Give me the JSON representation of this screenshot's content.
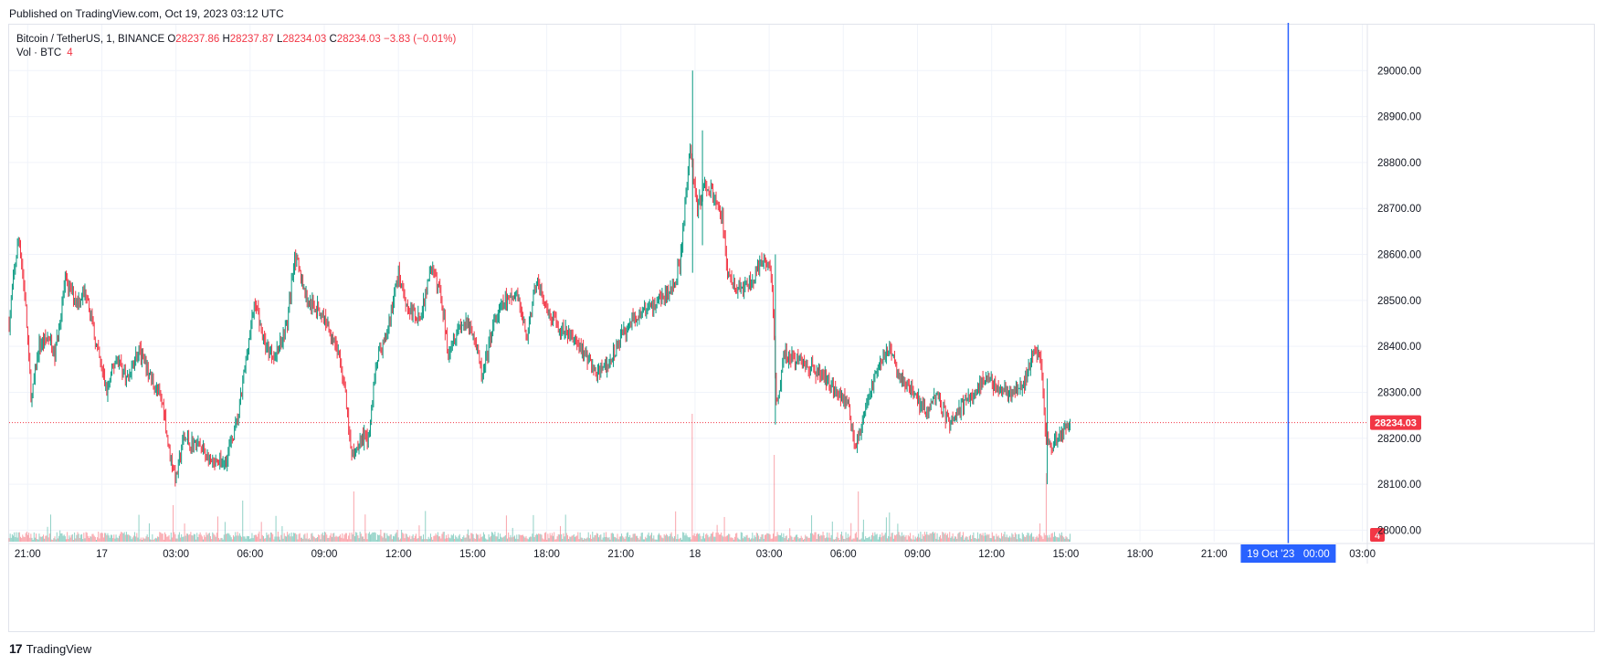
{
  "published_text": "Published on TradingView.com, Oct 19, 2023 03:12 UTC",
  "legend": {
    "symbol": "Bitcoin / TetherUS, 1, BINANCE",
    "o_label": "O",
    "o_value": "28237.86",
    "h_label": "H",
    "h_value": "28237.87",
    "l_label": "L",
    "l_value": "28234.03",
    "c_label": "C",
    "c_value": "28234.03",
    "change": "−3.83 (−0.01%)"
  },
  "volume_legend": {
    "label": "Vol · BTC",
    "value": "4"
  },
  "footer": {
    "logo": "17",
    "brand": "TradingView"
  },
  "colors": {
    "up": "#089981",
    "down": "#f23645",
    "crosshair": "#2962ff",
    "grid": "#f0f3fa"
  },
  "chart_data": {
    "type": "candlestick",
    "title": "Bitcoin / TetherUS, 1, BINANCE",
    "interval": "1 minute",
    "ylim": [
      27975,
      29100
    ],
    "y_ticks": [
      28000,
      28100,
      28200,
      28300,
      28400,
      28500,
      28600,
      28700,
      28800,
      28900,
      29000
    ],
    "y_tick_labels": [
      "28000.00",
      "28100.00",
      "28200.00",
      "28300.00",
      "28400.00",
      "28500.00",
      "28600.00",
      "28700.00",
      "28800.00",
      "28900.00",
      "29000.00"
    ],
    "x_range_hours": [
      -0.3,
      33.3
    ],
    "x_ticks": [
      {
        "t": 0,
        "label": "21:00"
      },
      {
        "t": 3,
        "label": "17"
      },
      {
        "t": 6,
        "label": "03:00"
      },
      {
        "t": 9,
        "label": "06:00"
      },
      {
        "t": 12,
        "label": "09:00"
      },
      {
        "t": 15,
        "label": "12:00"
      },
      {
        "t": 18,
        "label": "15:00"
      },
      {
        "t": 21,
        "label": "18:00"
      },
      {
        "t": 24,
        "label": "21:00"
      },
      {
        "t": 27,
        "label": "18"
      },
      {
        "t": 30,
        "label": "03:00"
      },
      {
        "t": 33,
        "label": "06:00"
      },
      {
        "t": 36,
        "label": "09:00"
      },
      {
        "t": 39,
        "label": "12:00"
      },
      {
        "t": 42,
        "label": "15:00"
      },
      {
        "t": 45,
        "label": "18:00"
      },
      {
        "t": 48,
        "label": "21:00"
      },
      {
        "t": 54,
        "label": "03:00"
      }
    ],
    "x_range_hours_full": [
      -0.75,
      54.2
    ],
    "crosshair": {
      "t": 51,
      "label": "19 Oct '23   00:00"
    },
    "last_price": 28234.03,
    "last_price_label": "28234.03",
    "volume_label_value": "4",
    "price_path": [
      {
        "t": -0.75,
        "p": 28450
      },
      {
        "t": -0.55,
        "p": 28560
      },
      {
        "t": -0.35,
        "p": 28640
      },
      {
        "t": -0.1,
        "p": 28500
      },
      {
        "t": 0.15,
        "p": 28280
      },
      {
        "t": 0.45,
        "p": 28400
      },
      {
        "t": 0.8,
        "p": 28420
      },
      {
        "t": 1.1,
        "p": 28380
      },
      {
        "t": 1.5,
        "p": 28540
      },
      {
        "t": 2.0,
        "p": 28500
      },
      {
        "t": 2.4,
        "p": 28520
      },
      {
        "t": 2.7,
        "p": 28420
      },
      {
        "t": 3.2,
        "p": 28300
      },
      {
        "t": 3.6,
        "p": 28380
      },
      {
        "t": 4.0,
        "p": 28330
      },
      {
        "t": 4.5,
        "p": 28390
      },
      {
        "t": 5.0,
        "p": 28330
      },
      {
        "t": 5.5,
        "p": 28270
      },
      {
        "t": 5.7,
        "p": 28180
      },
      {
        "t": 6.0,
        "p": 28110
      },
      {
        "t": 6.3,
        "p": 28200
      },
      {
        "t": 7.0,
        "p": 28180
      },
      {
        "t": 7.5,
        "p": 28140
      },
      {
        "t": 8.0,
        "p": 28150
      },
      {
        "t": 8.5,
        "p": 28240
      },
      {
        "t": 8.9,
        "p": 28400
      },
      {
        "t": 9.2,
        "p": 28500
      },
      {
        "t": 9.6,
        "p": 28400
      },
      {
        "t": 10.0,
        "p": 28380
      },
      {
        "t": 10.5,
        "p": 28450
      },
      {
        "t": 10.8,
        "p": 28600
      },
      {
        "t": 11.3,
        "p": 28500
      },
      {
        "t": 11.8,
        "p": 28480
      },
      {
        "t": 12.2,
        "p": 28440
      },
      {
        "t": 12.5,
        "p": 28400
      },
      {
        "t": 12.8,
        "p": 28320
      },
      {
        "t": 13.1,
        "p": 28160
      },
      {
        "t": 13.5,
        "p": 28200
      },
      {
        "t": 13.8,
        "p": 28200
      },
      {
        "t": 14.1,
        "p": 28370
      },
      {
        "t": 14.5,
        "p": 28420
      },
      {
        "t": 15.0,
        "p": 28560
      },
      {
        "t": 15.4,
        "p": 28480
      },
      {
        "t": 15.9,
        "p": 28460
      },
      {
        "t": 16.3,
        "p": 28570
      },
      {
        "t": 16.7,
        "p": 28520
      },
      {
        "t": 17.0,
        "p": 28390
      },
      {
        "t": 17.5,
        "p": 28450
      },
      {
        "t": 18.0,
        "p": 28440
      },
      {
        "t": 18.4,
        "p": 28330
      },
      {
        "t": 18.8,
        "p": 28440
      },
      {
        "t": 19.3,
        "p": 28500
      },
      {
        "t": 19.8,
        "p": 28510
      },
      {
        "t": 20.2,
        "p": 28420
      },
      {
        "t": 20.6,
        "p": 28550
      },
      {
        "t": 21.0,
        "p": 28470
      },
      {
        "t": 21.5,
        "p": 28440
      },
      {
        "t": 22.0,
        "p": 28420
      },
      {
        "t": 22.5,
        "p": 28390
      },
      {
        "t": 23.0,
        "p": 28340
      },
      {
        "t": 23.5,
        "p": 28360
      },
      {
        "t": 24.0,
        "p": 28420
      },
      {
        "t": 24.5,
        "p": 28460
      },
      {
        "t": 25.0,
        "p": 28480
      },
      {
        "t": 25.5,
        "p": 28500
      },
      {
        "t": 26.0,
        "p": 28520
      },
      {
        "t": 26.4,
        "p": 28580
      },
      {
        "t": 26.8,
        "p": 28830
      },
      {
        "t": 27.1,
        "p": 28700
      },
      {
        "t": 27.4,
        "p": 28760
      },
      {
        "t": 27.8,
        "p": 28720
      },
      {
        "t": 28.1,
        "p": 28680
      },
      {
        "t": 28.3,
        "p": 28560
      },
      {
        "t": 28.8,
        "p": 28520
      },
      {
        "t": 29.3,
        "p": 28540
      },
      {
        "t": 29.8,
        "p": 28590
      },
      {
        "t": 30.1,
        "p": 28560
      },
      {
        "t": 30.3,
        "p": 28260
      },
      {
        "t": 30.6,
        "p": 28380
      },
      {
        "t": 31.2,
        "p": 28370
      },
      {
        "t": 31.8,
        "p": 28350
      },
      {
        "t": 32.3,
        "p": 28330
      },
      {
        "t": 32.8,
        "p": 28300
      },
      {
        "t": 33.2,
        "p": 28270
      },
      {
        "t": 33.5,
        "p": 28180
      },
      {
        "t": 33.9,
        "p": 28260
      },
      {
        "t": 34.3,
        "p": 28340
      },
      {
        "t": 34.8,
        "p": 28400
      },
      {
        "t": 35.3,
        "p": 28330
      },
      {
        "t": 35.8,
        "p": 28300
      },
      {
        "t": 36.3,
        "p": 28260
      },
      {
        "t": 36.8,
        "p": 28290
      },
      {
        "t": 37.3,
        "p": 28230
      },
      {
        "t": 37.8,
        "p": 28270
      },
      {
        "t": 38.3,
        "p": 28300
      },
      {
        "t": 38.8,
        "p": 28330
      },
      {
        "t": 39.3,
        "p": 28310
      },
      {
        "t": 39.8,
        "p": 28300
      },
      {
        "t": 40.3,
        "p": 28310
      },
      {
        "t": 40.7,
        "p": 28400
      },
      {
        "t": 41.0,
        "p": 28370
      },
      {
        "t": 41.2,
        "p": 28200
      },
      {
        "t": 41.4,
        "p": 28180
      },
      {
        "t": 41.8,
        "p": 28210
      },
      {
        "t": 42.2,
        "p": 28234
      }
    ],
    "volume_spikes": [
      {
        "t": 5.9,
        "v": 40
      },
      {
        "t": 8.7,
        "v": 45
      },
      {
        "t": 13.2,
        "v": 55
      },
      {
        "t": 26.9,
        "v": 140
      },
      {
        "t": 30.2,
        "v": 95
      },
      {
        "t": 33.6,
        "v": 55
      },
      {
        "t": 41.2,
        "v": 75
      }
    ]
  }
}
